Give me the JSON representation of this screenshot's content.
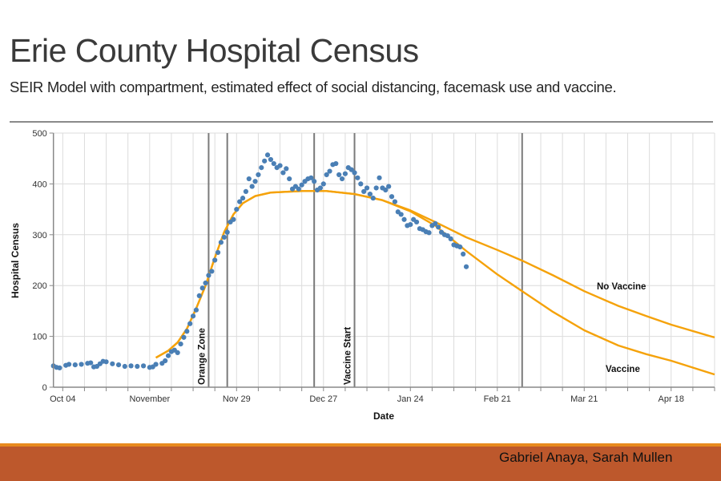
{
  "slide": {
    "title": "Erie County Hospital Census",
    "subtitle": "SEIR Model with compartment, estimated effect of social distancing, facemask use and vaccine.",
    "authors": "Gabriel Anaya, Sarah Mullen",
    "colors": {
      "footer_bar": "#bd582c",
      "footer_line": "#e88a1e",
      "title": "#3a3a3a"
    }
  },
  "chart_data": {
    "type": "line",
    "xlabel": "Date",
    "ylabel": "Hospital Census",
    "xlim": [
      "2020-10-01",
      "2021-05-02"
    ],
    "ylim": [
      0,
      500
    ],
    "grid": true,
    "y_ticks": [
      0,
      100,
      200,
      300,
      400,
      500
    ],
    "x_ticks": [
      {
        "date": "2020-10-04",
        "label": "Oct 04"
      },
      {
        "date": "2020-11-01",
        "label": "November"
      },
      {
        "date": "2020-11-29",
        "label": "Nov 29"
      },
      {
        "date": "2020-12-27",
        "label": "Dec 27"
      },
      {
        "date": "2021-01-24",
        "label": "Jan 24"
      },
      {
        "date": "2021-02-21",
        "label": "Feb 21"
      },
      {
        "date": "2021-03-21",
        "label": "Mar 21"
      },
      {
        "date": "2021-04-18",
        "label": "Apr 18"
      }
    ],
    "event_lines": [
      {
        "date": "2020-11-20",
        "label": "Orange Zone"
      },
      {
        "date": "2020-11-26",
        "label": ""
      },
      {
        "date": "2020-12-24",
        "label": ""
      },
      {
        "date": "2021-01-06",
        "label": "Vaccine Start"
      },
      {
        "date": "2021-03-01",
        "label": ""
      }
    ],
    "series": [
      {
        "type": "scatter",
        "color": "#4a7fb5",
        "points": [
          [
            "2020-10-01",
            42
          ],
          [
            "2020-10-02",
            39
          ],
          [
            "2020-10-03",
            38
          ],
          [
            "2020-10-05",
            43
          ],
          [
            "2020-10-06",
            45
          ],
          [
            "2020-10-08",
            44
          ],
          [
            "2020-10-10",
            45
          ],
          [
            "2020-10-12",
            47
          ],
          [
            "2020-10-13",
            48
          ],
          [
            "2020-10-14",
            40
          ],
          [
            "2020-10-15",
            41
          ],
          [
            "2020-10-16",
            46
          ],
          [
            "2020-10-17",
            51
          ],
          [
            "2020-10-18",
            50
          ],
          [
            "2020-10-20",
            46
          ],
          [
            "2020-10-22",
            44
          ],
          [
            "2020-10-24",
            41
          ],
          [
            "2020-10-26",
            42
          ],
          [
            "2020-10-28",
            41
          ],
          [
            "2020-10-30",
            42
          ],
          [
            "2020-11-01",
            39
          ],
          [
            "2020-11-02",
            40
          ],
          [
            "2020-11-03",
            45
          ],
          [
            "2020-11-05",
            47
          ],
          [
            "2020-11-06",
            52
          ],
          [
            "2020-11-07",
            62
          ],
          [
            "2020-11-08",
            70
          ],
          [
            "2020-11-09",
            73
          ],
          [
            "2020-11-10",
            68
          ],
          [
            "2020-11-11",
            85
          ],
          [
            "2020-11-12",
            98
          ],
          [
            "2020-11-13",
            110
          ],
          [
            "2020-11-14",
            125
          ],
          [
            "2020-11-15",
            140
          ],
          [
            "2020-11-16",
            152
          ],
          [
            "2020-11-17",
            180
          ],
          [
            "2020-11-18",
            195
          ],
          [
            "2020-11-19",
            205
          ],
          [
            "2020-11-20",
            220
          ],
          [
            "2020-11-21",
            228
          ],
          [
            "2020-11-22",
            250
          ],
          [
            "2020-11-23",
            265
          ],
          [
            "2020-11-24",
            285
          ],
          [
            "2020-11-25",
            295
          ],
          [
            "2020-11-26",
            305
          ],
          [
            "2020-11-27",
            325
          ],
          [
            "2020-11-28",
            330
          ],
          [
            "2020-11-29",
            350
          ],
          [
            "2020-11-30",
            365
          ],
          [
            "2020-12-01",
            372
          ],
          [
            "2020-12-02",
            385
          ],
          [
            "2020-12-03",
            410
          ],
          [
            "2020-12-04",
            395
          ],
          [
            "2020-12-05",
            405
          ],
          [
            "2020-12-06",
            418
          ],
          [
            "2020-12-07",
            432
          ],
          [
            "2020-12-08",
            445
          ],
          [
            "2020-12-09",
            457
          ],
          [
            "2020-12-10",
            448
          ],
          [
            "2020-12-11",
            440
          ],
          [
            "2020-12-12",
            432
          ],
          [
            "2020-12-13",
            436
          ],
          [
            "2020-12-14",
            422
          ],
          [
            "2020-12-15",
            430
          ],
          [
            "2020-12-16",
            410
          ],
          [
            "2020-12-17",
            390
          ],
          [
            "2020-12-18",
            395
          ],
          [
            "2020-12-19",
            390
          ],
          [
            "2020-12-20",
            398
          ],
          [
            "2020-12-21",
            405
          ],
          [
            "2020-12-22",
            410
          ],
          [
            "2020-12-23",
            412
          ],
          [
            "2020-12-24",
            405
          ],
          [
            "2020-12-25",
            388
          ],
          [
            "2020-12-26",
            392
          ],
          [
            "2020-12-27",
            400
          ],
          [
            "2020-12-28",
            418
          ],
          [
            "2020-12-29",
            425
          ],
          [
            "2020-12-30",
            438
          ],
          [
            "2020-12-31",
            440
          ],
          [
            "2021-01-01",
            418
          ],
          [
            "2021-01-02",
            410
          ],
          [
            "2021-01-03",
            420
          ],
          [
            "2021-01-04",
            432
          ],
          [
            "2021-01-05",
            428
          ],
          [
            "2021-01-06",
            422
          ],
          [
            "2021-01-07",
            412
          ],
          [
            "2021-01-08",
            400
          ],
          [
            "2021-01-09",
            385
          ],
          [
            "2021-01-10",
            392
          ],
          [
            "2021-01-11",
            380
          ],
          [
            "2021-01-12",
            372
          ],
          [
            "2021-01-13",
            392
          ],
          [
            "2021-01-14",
            412
          ],
          [
            "2021-01-15",
            392
          ],
          [
            "2021-01-16",
            388
          ],
          [
            "2021-01-17",
            395
          ],
          [
            "2021-01-18",
            375
          ],
          [
            "2021-01-19",
            365
          ],
          [
            "2021-01-20",
            345
          ],
          [
            "2021-01-21",
            340
          ],
          [
            "2021-01-22",
            330
          ],
          [
            "2021-01-23",
            318
          ],
          [
            "2021-01-24",
            320
          ],
          [
            "2021-01-25",
            330
          ],
          [
            "2021-01-26",
            325
          ],
          [
            "2021-01-27",
            312
          ],
          [
            "2021-01-28",
            310
          ],
          [
            "2021-01-29",
            306
          ],
          [
            "2021-01-30",
            304
          ],
          [
            "2021-01-31",
            318
          ],
          [
            "2021-02-01",
            322
          ],
          [
            "2021-02-02",
            315
          ],
          [
            "2021-02-03",
            305
          ],
          [
            "2021-02-04",
            300
          ],
          [
            "2021-02-05",
            298
          ],
          [
            "2021-02-06",
            292
          ],
          [
            "2021-02-07",
            280
          ],
          [
            "2021-02-08",
            278
          ],
          [
            "2021-02-09",
            276
          ],
          [
            "2021-02-10",
            262
          ],
          [
            "2021-02-11",
            237
          ]
        ]
      },
      {
        "name": "No Vaccine",
        "type": "line",
        "color": "#f5a20a",
        "points": [
          [
            "2020-11-03",
            58
          ],
          [
            "2020-11-07",
            72
          ],
          [
            "2020-11-10",
            88
          ],
          [
            "2020-11-13",
            115
          ],
          [
            "2020-11-16",
            155
          ],
          [
            "2020-11-19",
            200
          ],
          [
            "2020-11-22",
            255
          ],
          [
            "2020-11-25",
            305
          ],
          [
            "2020-11-28",
            340
          ],
          [
            "2020-12-01",
            362
          ],
          [
            "2020-12-05",
            376
          ],
          [
            "2020-12-10",
            383
          ],
          [
            "2020-12-20",
            386
          ],
          [
            "2020-12-28",
            386
          ],
          [
            "2021-01-06",
            380
          ],
          [
            "2021-01-15",
            368
          ],
          [
            "2021-01-24",
            348
          ],
          [
            "2021-02-01",
            325
          ],
          [
            "2021-02-11",
            295
          ],
          [
            "2021-02-21",
            270
          ],
          [
            "2021-03-01",
            249
          ],
          [
            "2021-03-11",
            220
          ],
          [
            "2021-03-21",
            189
          ],
          [
            "2021-04-01",
            160
          ],
          [
            "2021-04-10",
            140
          ],
          [
            "2021-04-18",
            123
          ],
          [
            "2021-05-02",
            98
          ]
        ]
      },
      {
        "name": "Vaccine",
        "type": "line",
        "color": "#f5a20a",
        "points": [
          [
            "2020-11-03",
            58
          ],
          [
            "2020-11-07",
            72
          ],
          [
            "2020-11-10",
            88
          ],
          [
            "2020-11-13",
            115
          ],
          [
            "2020-11-16",
            155
          ],
          [
            "2020-11-19",
            200
          ],
          [
            "2020-11-22",
            255
          ],
          [
            "2020-11-25",
            305
          ],
          [
            "2020-11-28",
            340
          ],
          [
            "2020-12-01",
            362
          ],
          [
            "2020-12-05",
            376
          ],
          [
            "2020-12-10",
            383
          ],
          [
            "2020-12-20",
            386
          ],
          [
            "2020-12-28",
            386
          ],
          [
            "2021-01-06",
            380
          ],
          [
            "2021-01-15",
            368
          ],
          [
            "2021-01-24",
            346
          ],
          [
            "2021-02-01",
            318
          ],
          [
            "2021-02-04",
            303
          ],
          [
            "2021-02-11",
            268
          ],
          [
            "2021-02-21",
            222
          ],
          [
            "2021-03-01",
            189
          ],
          [
            "2021-03-11",
            148
          ],
          [
            "2021-03-21",
            112
          ],
          [
            "2021-04-01",
            82
          ],
          [
            "2021-04-10",
            65
          ],
          [
            "2021-04-18",
            52
          ],
          [
            "2021-05-02",
            25
          ]
        ]
      }
    ]
  }
}
